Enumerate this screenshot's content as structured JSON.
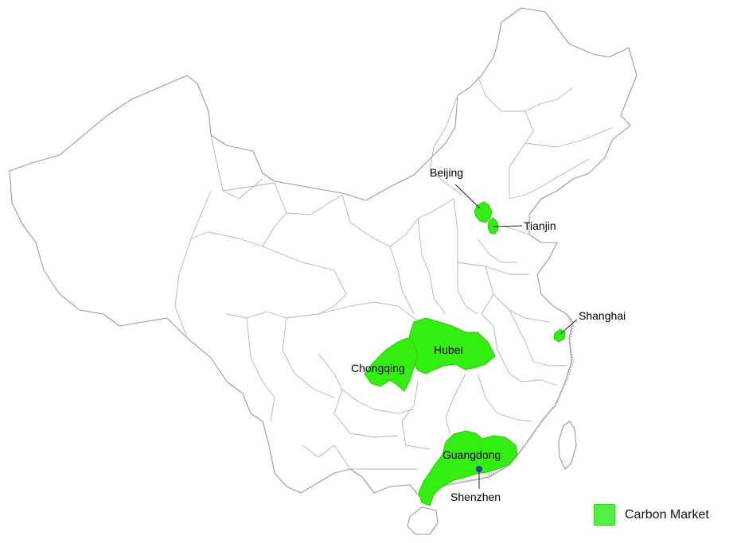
{
  "map": {
    "highlight_color": "#33ee11",
    "regions": [
      {
        "id": "beijing",
        "name": "Beijing"
      },
      {
        "id": "tianjin",
        "name": "Tianjin"
      },
      {
        "id": "shanghai",
        "name": "Shanghai"
      },
      {
        "id": "hubei",
        "name": "Hubei"
      },
      {
        "id": "chongqing",
        "name": "Chongqing"
      },
      {
        "id": "guangdong",
        "name": "Guangdong"
      },
      {
        "id": "shenzhen",
        "name": "Shenzhen"
      }
    ],
    "shenzhen_marker_color": "#2a3aa8"
  },
  "legend": {
    "label": "Carbon Market",
    "color": "#55ee44"
  }
}
